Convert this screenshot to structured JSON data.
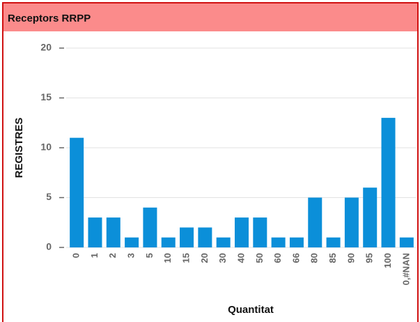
{
  "panel": {
    "title": "Receptors RRPP"
  },
  "chart_data": {
    "type": "bar",
    "categories": [
      "0",
      "1",
      "2",
      "3",
      "5",
      "10",
      "15",
      "20",
      "30",
      "40",
      "50",
      "60",
      "66",
      "80",
      "85",
      "90",
      "95",
      "100",
      "0,#NAN"
    ],
    "values": [
      11,
      3,
      3,
      1,
      4,
      1,
      2,
      2,
      1,
      3,
      3,
      1,
      1,
      5,
      1,
      5,
      6,
      13,
      1
    ],
    "color": "#0b8fd9",
    "xlabel": "Quantitat",
    "ylabel": "REGISTRES",
    "ylim": [
      0,
      20
    ],
    "yticks": [
      0,
      5,
      10,
      15,
      20
    ],
    "grid": true
  }
}
